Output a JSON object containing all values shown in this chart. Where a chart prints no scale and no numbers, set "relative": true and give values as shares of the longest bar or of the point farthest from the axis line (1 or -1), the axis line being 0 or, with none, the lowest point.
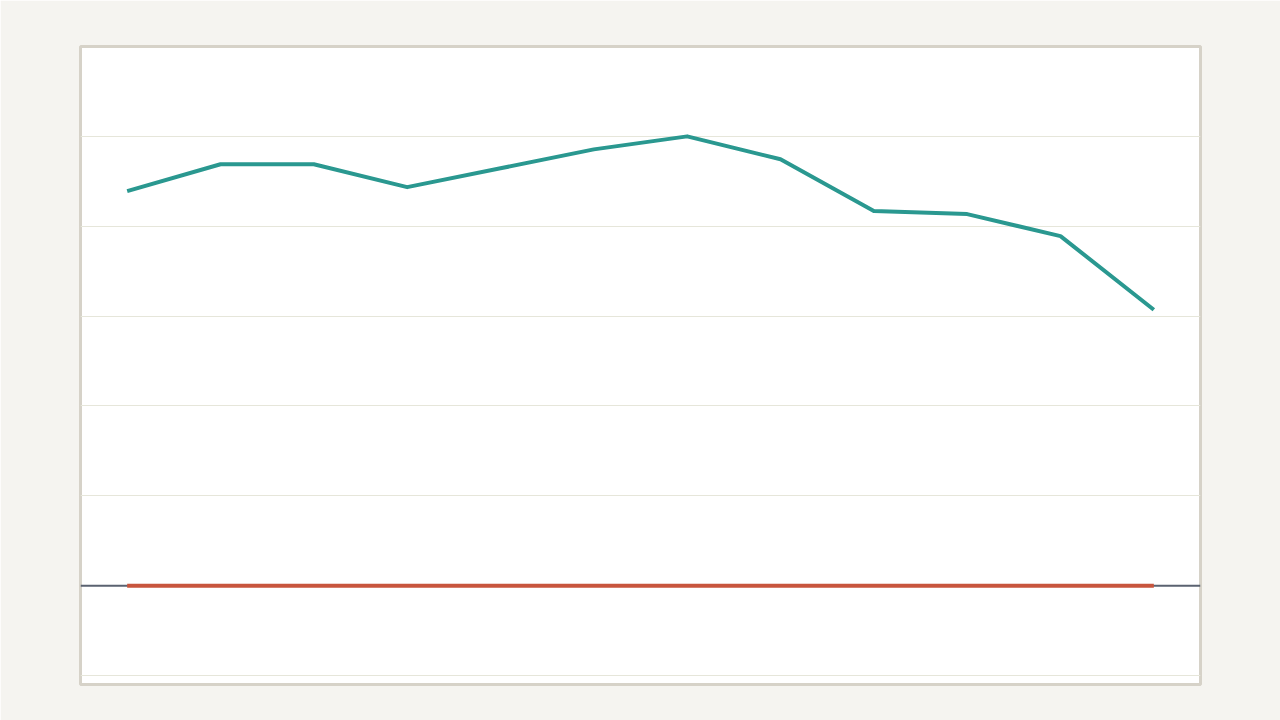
{
  "chart_data": {
    "type": "line",
    "relative": true,
    "grid": "y",
    "marker": "none",
    "line_style": "solid",
    "categories": [
      null,
      null,
      null,
      null,
      null,
      null,
      null,
      null,
      null,
      null,
      null,
      null
    ],
    "series": [
      {
        "color": "#2a9890",
        "values": [
          0.878,
          0.938,
          0.938,
          0.887,
          0.929,
          0.971,
          1,
          0.949,
          0.834,
          0.827,
          0.778,
          0.614
        ]
      },
      {
        "color": "#c8553d",
        "values": [
          0,
          0,
          0,
          0,
          0,
          0,
          0,
          0,
          0,
          0,
          0,
          0
        ]
      }
    ]
  }
}
